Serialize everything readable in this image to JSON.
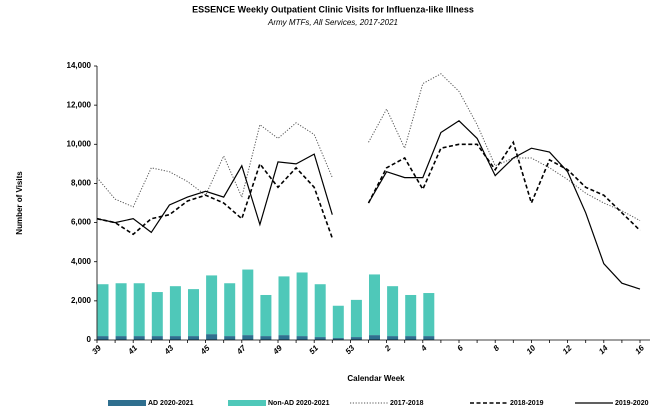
{
  "chart_data": {
    "type": "bar-line",
    "title": "ESSENCE Weekly Outpatient Clinic Visits for Influenza-like Illness",
    "subtitle": "Army MTFs, All Services, 2017-2021",
    "x_label": "Calendar Week",
    "y_label": "Number of Visits",
    "categories": [
      "39",
      null,
      "41",
      null,
      "43",
      null,
      "45",
      null,
      "47",
      null,
      "49",
      null,
      "51",
      null,
      "53",
      null,
      "2",
      null,
      "4",
      null,
      "6",
      null,
      "8",
      null,
      "10",
      null,
      "12",
      null,
      "14",
      null,
      "16"
    ],
    "ylim": [
      0,
      14000
    ],
    "yticks": [
      0,
      {
        "value": 2000,
        "label": "2,000"
      },
      {
        "value": 4000,
        "label": "4,000"
      },
      {
        "value": 6000,
        "label": "6,000"
      },
      {
        "value": 8000,
        "label": "8,000"
      },
      {
        "value": 10000,
        "label": "10,000"
      },
      {
        "value": 12000,
        "label": "12,000"
      },
      {
        "value": 14000,
        "label": "14,000"
      }
    ],
    "series": [
      {
        "name": "AD 2020-2021",
        "kind": "bar",
        "color": "#2f6f8f",
        "values": [
          200,
          200,
          200,
          200,
          200,
          200,
          300,
          200,
          250,
          200,
          250,
          200,
          150,
          100,
          150,
          250,
          200,
          200,
          200,
          null,
          null,
          null,
          null,
          null,
          null,
          null,
          null,
          null,
          null,
          null,
          null
        ]
      },
      {
        "name": "Non-AD 2020-2021",
        "kind": "bar",
        "color": "#4fc8b9",
        "values": [
          2650,
          2700,
          2700,
          2250,
          2550,
          2400,
          3000,
          2700,
          3350,
          2100,
          3000,
          3250,
          2700,
          1650,
          1900,
          3100,
          2550,
          2100,
          2200,
          null,
          null,
          null,
          null,
          null,
          null,
          null,
          null,
          null,
          null,
          null,
          null
        ]
      },
      {
        "name": "2017-2018",
        "kind": "line",
        "style": "dotted",
        "color": "#555555",
        "values": [
          8300,
          7200,
          6800,
          8800,
          8600,
          8100,
          7400,
          9400,
          7300,
          11000,
          10300,
          11100,
          10500,
          8300,
          null,
          10100,
          11800,
          9800,
          13100,
          13600,
          12700,
          11000,
          8900,
          9300,
          9300,
          8800,
          8200,
          7500,
          7000,
          6600,
          6100
        ]
      },
      {
        "name": "2018-2019",
        "kind": "line",
        "style": "dashed",
        "color": "#000000",
        "values": [
          6200,
          6000,
          5400,
          6200,
          6400,
          7100,
          7400,
          7000,
          6200,
          9000,
          7800,
          8800,
          7800,
          5200,
          null,
          7000,
          8800,
          9300,
          7700,
          9800,
          10000,
          10000,
          8700,
          10100,
          7000,
          9200,
          8700,
          7800,
          7400,
          6500,
          5600
        ]
      },
      {
        "name": "2019-2020",
        "kind": "line",
        "style": "solid",
        "color": "#000000",
        "values": [
          6200,
          6000,
          6200,
          5500,
          6900,
          7300,
          7600,
          7300,
          8900,
          5900,
          9100,
          9000,
          9500,
          6400,
          null,
          7000,
          8600,
          8300,
          8300,
          10600,
          11200,
          10300,
          8400,
          9300,
          9800,
          9600,
          8600,
          6500,
          3900,
          2900,
          2600
        ]
      }
    ]
  }
}
